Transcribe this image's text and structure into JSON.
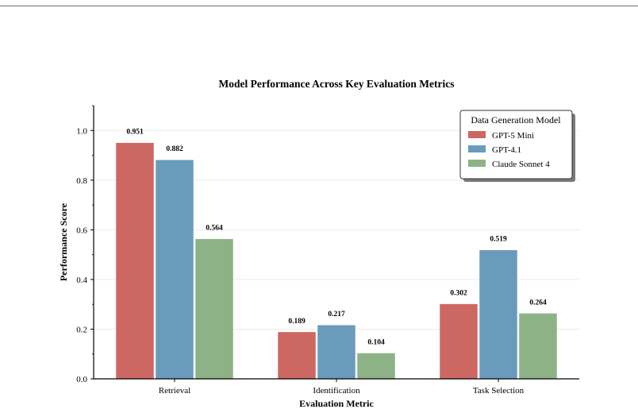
{
  "chart_data": {
    "type": "bar",
    "title": "Model Performance Across Key Evaluation Metrics",
    "xlabel": "Evaluation Metric",
    "ylabel": "Performance Score",
    "categories": [
      "Retrieval",
      "Identification",
      "Task Selection"
    ],
    "series": [
      {
        "name": "GPT-5 Mini",
        "values": [
          0.951,
          0.189,
          0.302
        ],
        "color": "#cd6762"
      },
      {
        "name": "GPT-4.1",
        "values": [
          0.882,
          0.217,
          0.519
        ],
        "color": "#6a9bba"
      },
      {
        "name": "Claude Sonnet 4",
        "values": [
          0.564,
          0.104,
          0.264
        ],
        "color": "#8cb285"
      }
    ],
    "data_labels": [
      [
        "0.951",
        "0.189",
        "0.302"
      ],
      [
        "0.882",
        "0.217",
        "0.519"
      ],
      [
        "0.564",
        "0.104",
        "0.264"
      ]
    ],
    "ylim": [
      0,
      1.1
    ],
    "yticks": [
      0.0,
      0.2,
      0.4,
      0.6,
      0.8,
      1.0
    ],
    "ytick_labels": [
      "0.0",
      "0.2",
      "0.4",
      "0.6",
      "0.8",
      "1.0"
    ],
    "grid": "horizontal",
    "legend": {
      "title": "Data Generation Model",
      "placement": "top-right"
    }
  }
}
